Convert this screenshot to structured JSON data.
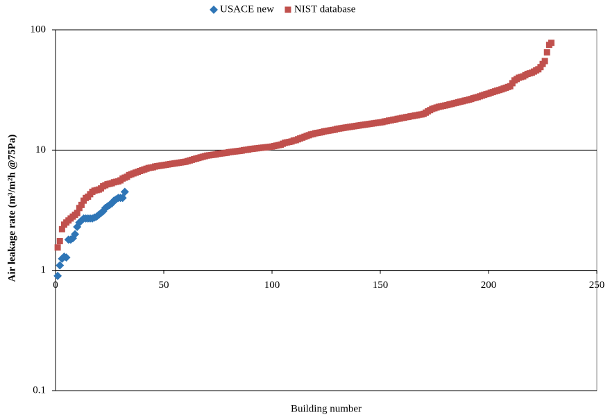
{
  "chart_data": {
    "type": "scatter",
    "xlabel": "Building number",
    "ylabel": "Air leakage rate (m³/m²h @75Pa)",
    "xlim": [
      0,
      250
    ],
    "xticks": [
      0,
      50,
      100,
      150,
      200,
      250
    ],
    "ylim": [
      0.1,
      100
    ],
    "yticks": [
      0.1,
      1,
      10,
      100
    ],
    "log_y": true,
    "grid": true,
    "xaxis_crosses": 1,
    "legend": "top",
    "series": [
      {
        "name": "USACE new",
        "color": "#2e75b6",
        "marker": "diamond",
        "x": [
          1,
          2,
          3,
          4,
          5,
          6,
          7,
          8,
          9,
          10,
          11,
          12,
          13,
          14,
          15,
          16,
          17,
          18,
          19,
          20,
          21,
          22,
          23,
          24,
          25,
          26,
          27,
          28,
          29,
          30,
          31,
          32
        ],
        "values": [
          0.9,
          1.1,
          1.25,
          1.3,
          1.28,
          1.8,
          1.8,
          1.85,
          2.0,
          2.3,
          2.5,
          2.6,
          2.7,
          2.7,
          2.7,
          2.7,
          2.7,
          2.75,
          2.8,
          2.9,
          3.0,
          3.1,
          3.3,
          3.4,
          3.5,
          3.6,
          3.8,
          3.9,
          4.0,
          4.0,
          4.0,
          4.5
        ]
      },
      {
        "name": "NIST database",
        "color": "#c0504d",
        "marker": "square",
        "x": [
          1,
          2,
          3,
          4,
          5,
          6,
          7,
          8,
          9,
          10,
          11,
          12,
          13,
          14,
          15,
          16,
          17,
          18,
          19,
          20,
          21,
          22,
          23,
          24,
          25,
          26,
          27,
          28,
          29,
          30,
          31,
          32,
          33,
          34,
          35,
          36,
          37,
          38,
          39,
          40,
          41,
          42,
          43,
          44,
          45,
          46,
          47,
          48,
          49,
          50,
          51,
          52,
          53,
          54,
          55,
          56,
          57,
          58,
          59,
          60,
          61,
          62,
          63,
          64,
          65,
          66,
          67,
          68,
          69,
          70,
          71,
          72,
          73,
          74,
          75,
          76,
          77,
          78,
          79,
          80,
          81,
          82,
          83,
          84,
          85,
          86,
          87,
          88,
          89,
          90,
          91,
          92,
          93,
          94,
          95,
          96,
          97,
          98,
          99,
          100,
          101,
          102,
          103,
          104,
          105,
          106,
          107,
          108,
          109,
          110,
          111,
          112,
          113,
          114,
          115,
          116,
          117,
          118,
          119,
          120,
          121,
          122,
          123,
          124,
          125,
          126,
          127,
          128,
          129,
          130,
          131,
          132,
          133,
          134,
          135,
          136,
          137,
          138,
          139,
          140,
          141,
          142,
          143,
          144,
          145,
          146,
          147,
          148,
          149,
          150,
          151,
          152,
          153,
          154,
          155,
          156,
          157,
          158,
          159,
          160,
          161,
          162,
          163,
          164,
          165,
          166,
          167,
          168,
          169,
          170,
          171,
          172,
          173,
          174,
          175,
          176,
          177,
          178,
          179,
          180,
          181,
          182,
          183,
          184,
          185,
          186,
          187,
          188,
          189,
          190,
          191,
          192,
          193,
          194,
          195,
          196,
          197,
          198,
          199,
          200,
          201,
          202,
          203,
          204,
          205,
          206,
          207,
          208,
          209,
          210,
          211,
          212,
          213,
          214,
          215,
          216,
          217,
          218,
          219,
          220,
          221,
          222,
          223,
          224,
          225,
          226,
          227,
          228,
          229
        ],
        "values": [
          1.55,
          1.75,
          2.2,
          2.4,
          2.5,
          2.6,
          2.7,
          2.8,
          2.9,
          3.0,
          3.3,
          3.5,
          3.8,
          4.0,
          4.1,
          4.3,
          4.5,
          4.6,
          4.65,
          4.7,
          4.8,
          5.0,
          5.1,
          5.2,
          5.25,
          5.3,
          5.4,
          5.45,
          5.5,
          5.6,
          5.8,
          5.9,
          6.0,
          6.2,
          6.3,
          6.4,
          6.5,
          6.6,
          6.7,
          6.8,
          6.9,
          7.0,
          7.1,
          7.15,
          7.2,
          7.3,
          7.35,
          7.4,
          7.45,
          7.5,
          7.55,
          7.6,
          7.65,
          7.7,
          7.75,
          7.8,
          7.85,
          7.9,
          7.95,
          8.0,
          8.1,
          8.2,
          8.3,
          8.4,
          8.5,
          8.6,
          8.7,
          8.8,
          8.9,
          9.0,
          9.05,
          9.1,
          9.15,
          9.2,
          9.3,
          9.35,
          9.4,
          9.45,
          9.5,
          9.6,
          9.65,
          9.7,
          9.75,
          9.8,
          9.85,
          9.9,
          10.0,
          10.05,
          10.1,
          10.2,
          10.25,
          10.3,
          10.35,
          10.4,
          10.45,
          10.5,
          10.55,
          10.6,
          10.65,
          10.7,
          10.8,
          10.9,
          11.0,
          11.1,
          11.3,
          11.5,
          11.6,
          11.7,
          11.8,
          12.0,
          12.1,
          12.3,
          12.5,
          12.7,
          12.9,
          13.1,
          13.3,
          13.5,
          13.6,
          13.8,
          13.9,
          14.0,
          14.1,
          14.3,
          14.4,
          14.5,
          14.6,
          14.7,
          14.8,
          15.0,
          15.1,
          15.2,
          15.3,
          15.4,
          15.5,
          15.6,
          15.7,
          15.8,
          15.9,
          16.0,
          16.1,
          16.2,
          16.3,
          16.4,
          16.5,
          16.6,
          16.7,
          16.8,
          16.9,
          17.0,
          17.1,
          17.3,
          17.4,
          17.6,
          17.7,
          17.9,
          18.0,
          18.2,
          18.3,
          18.5,
          18.6,
          18.8,
          18.9,
          19.1,
          19.2,
          19.4,
          19.5,
          19.7,
          19.8,
          20.0,
          20.5,
          21.0,
          21.5,
          22.0,
          22.3,
          22.6,
          22.9,
          23.1,
          23.3,
          23.5,
          23.7,
          24.0,
          24.2,
          24.5,
          24.7,
          25.0,
          25.3,
          25.5,
          25.8,
          26.0,
          26.3,
          26.6,
          27.0,
          27.3,
          27.6,
          28.0,
          28.4,
          28.8,
          29.2,
          29.5,
          30,
          30.4,
          30.8,
          31.2,
          31.6,
          32,
          32.5,
          33,
          33.5,
          34,
          36,
          38,
          39,
          40,
          40.5,
          41,
          42,
          43,
          43.5,
          44,
          45,
          46,
          47,
          49,
          52,
          55,
          65,
          75,
          78
        ]
      }
    ]
  }
}
